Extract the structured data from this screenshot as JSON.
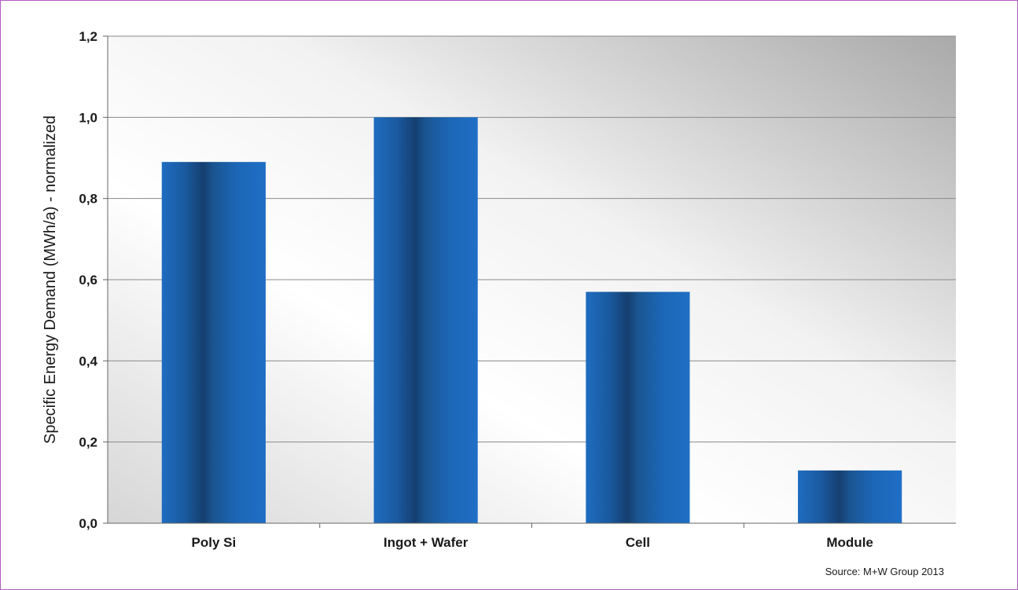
{
  "chart_data": {
    "type": "bar",
    "categories": [
      "Poly Si",
      "Ingot + Wafer",
      "Cell",
      "Module"
    ],
    "values": [
      0.89,
      1.0,
      0.57,
      0.13
    ],
    "ylabel": "Specific Energy Demand (MWh/a) - normalized",
    "xlabel": "",
    "ylim": [
      0,
      1.2
    ],
    "yticks": [
      "0,0",
      "0,2",
      "0,4",
      "0,6",
      "0,8",
      "1,0",
      "1,2"
    ],
    "grid": true,
    "bar_color": "#1f63a8",
    "source": "Source: M+W Group 2013"
  }
}
